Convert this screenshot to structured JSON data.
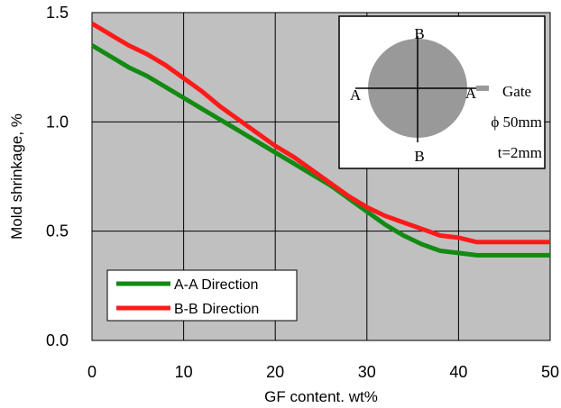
{
  "chart_data": {
    "type": "line",
    "xlabel": "GF content. wt%",
    "ylabel": "Mold shrinkage, %",
    "xlim": [
      0,
      50
    ],
    "ylim": [
      0,
      1.5
    ],
    "x_ticks": [
      "0",
      "10",
      "20",
      "30",
      "40",
      "50"
    ],
    "y_ticks": [
      "0.0",
      "0.5",
      "1.0",
      "1.5"
    ],
    "grid": true,
    "legend_position": "bottom-left",
    "series": [
      {
        "name": "A-A Direction",
        "color": "#138a13",
        "x": [
          0,
          2,
          4,
          6,
          8,
          10,
          12,
          14,
          16,
          18,
          20,
          22,
          24,
          26,
          28,
          30,
          32,
          34,
          36,
          38,
          40,
          42,
          44,
          46,
          48,
          50
        ],
        "y": [
          1.35,
          1.3,
          1.25,
          1.21,
          1.16,
          1.11,
          1.06,
          1.01,
          0.96,
          0.91,
          0.86,
          0.81,
          0.76,
          0.71,
          0.65,
          0.59,
          0.53,
          0.48,
          0.44,
          0.41,
          0.4,
          0.39,
          0.39,
          0.39,
          0.39,
          0.39
        ]
      },
      {
        "name": "B-B Direction",
        "color": "#ff1a1a",
        "x": [
          0,
          2,
          4,
          6,
          8,
          10,
          12,
          14,
          16,
          18,
          20,
          22,
          24,
          26,
          28,
          30,
          32,
          34,
          36,
          38,
          40,
          42,
          44,
          46,
          48,
          50
        ],
        "y": [
          1.45,
          1.4,
          1.35,
          1.31,
          1.26,
          1.2,
          1.14,
          1.07,
          1.01,
          0.95,
          0.89,
          0.84,
          0.78,
          0.72,
          0.66,
          0.61,
          0.57,
          0.54,
          0.51,
          0.48,
          0.47,
          0.45,
          0.45,
          0.45,
          0.45,
          0.45
        ]
      }
    ],
    "inset": {
      "label_b_top": "B",
      "label_b_bottom": "B",
      "label_a_left": "A",
      "label_a_right": "A",
      "gate_label": "Gate",
      "diameter_label": "ϕ 50mm",
      "thickness_label": "t=2mm"
    }
  }
}
